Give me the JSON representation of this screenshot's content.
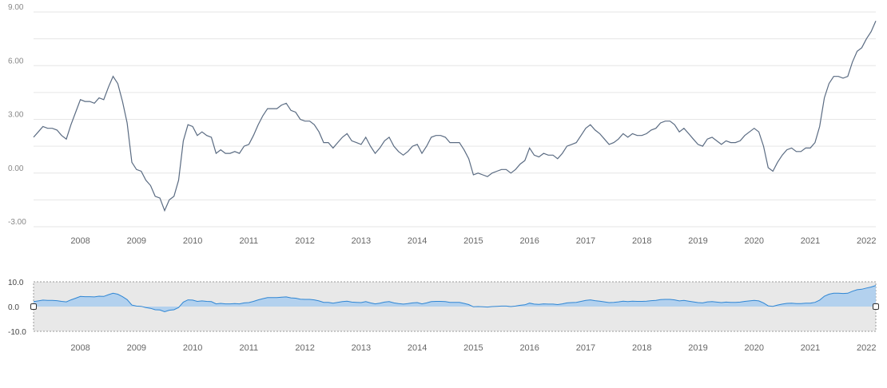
{
  "chart_data": {
    "type": "line",
    "title": "",
    "xlabel": "",
    "ylabel": "",
    "ylim": [
      -3,
      9
    ],
    "y_ticks": [
      "9.00",
      "6.00",
      "3.00",
      "0.00",
      "-3.00"
    ],
    "x_ticks": [
      "2008",
      "2009",
      "2010",
      "2011",
      "2012",
      "2013",
      "2014",
      "2015",
      "2016",
      "2017",
      "2018",
      "2019",
      "2020",
      "2021",
      "2022"
    ],
    "grid": true,
    "series": [
      {
        "color": "#5a6b82",
        "x": [
          "2007-03",
          "2007-04",
          "2007-05",
          "2007-06",
          "2007-07",
          "2007-08",
          "2007-09",
          "2007-10",
          "2007-11",
          "2007-12",
          "2008-01",
          "2008-02",
          "2008-03",
          "2008-04",
          "2008-05",
          "2008-06",
          "2008-07",
          "2008-08",
          "2008-09",
          "2008-10",
          "2008-11",
          "2008-12",
          "2009-01",
          "2009-02",
          "2009-03",
          "2009-04",
          "2009-05",
          "2009-06",
          "2009-07",
          "2009-08",
          "2009-09",
          "2009-10",
          "2009-11",
          "2009-12",
          "2010-01",
          "2010-02",
          "2010-03",
          "2010-04",
          "2010-05",
          "2010-06",
          "2010-07",
          "2010-08",
          "2010-09",
          "2010-10",
          "2010-11",
          "2010-12",
          "2011-01",
          "2011-02",
          "2011-03",
          "2011-04",
          "2011-05",
          "2011-06",
          "2011-07",
          "2011-08",
          "2011-09",
          "2011-10",
          "2011-11",
          "2011-12",
          "2012-01",
          "2012-02",
          "2012-03",
          "2012-04",
          "2012-05",
          "2012-06",
          "2012-07",
          "2012-08",
          "2012-09",
          "2012-10",
          "2012-11",
          "2012-12",
          "2013-01",
          "2013-02",
          "2013-03",
          "2013-04",
          "2013-05",
          "2013-06",
          "2013-07",
          "2013-08",
          "2013-09",
          "2013-10",
          "2013-11",
          "2013-12",
          "2014-01",
          "2014-02",
          "2014-03",
          "2014-04",
          "2014-05",
          "2014-06",
          "2014-07",
          "2014-08",
          "2014-09",
          "2014-10",
          "2014-11",
          "2014-12",
          "2015-01",
          "2015-02",
          "2015-03",
          "2015-04",
          "2015-05",
          "2015-06",
          "2015-07",
          "2015-08",
          "2015-09",
          "2015-10",
          "2015-11",
          "2015-12",
          "2016-01",
          "2016-02",
          "2016-03",
          "2016-04",
          "2016-05",
          "2016-06",
          "2016-07",
          "2016-08",
          "2016-09",
          "2016-10",
          "2016-11",
          "2016-12",
          "2017-01",
          "2017-02",
          "2017-03",
          "2017-04",
          "2017-05",
          "2017-06",
          "2017-07",
          "2017-08",
          "2017-09",
          "2017-10",
          "2017-11",
          "2017-12",
          "2018-01",
          "2018-02",
          "2018-03",
          "2018-04",
          "2018-05",
          "2018-06",
          "2018-07",
          "2018-08",
          "2018-09",
          "2018-10",
          "2018-11",
          "2018-12",
          "2019-01",
          "2019-02",
          "2019-03",
          "2019-04",
          "2019-05",
          "2019-06",
          "2019-07",
          "2019-08",
          "2019-09",
          "2019-10",
          "2019-11",
          "2019-12",
          "2020-01",
          "2020-02",
          "2020-03",
          "2020-04",
          "2020-05",
          "2020-06",
          "2020-07",
          "2020-08",
          "2020-09",
          "2020-10",
          "2020-11",
          "2020-12",
          "2021-01",
          "2021-02",
          "2021-03",
          "2021-04",
          "2021-05",
          "2021-06",
          "2021-07",
          "2021-08",
          "2021-09",
          "2021-10",
          "2021-11",
          "2021-12",
          "2022-01",
          "2022-02",
          "2022-03"
        ],
        "values": [
          2.0,
          2.3,
          2.6,
          2.5,
          2.5,
          2.4,
          2.1,
          1.9,
          2.7,
          3.4,
          4.1,
          4.0,
          4.0,
          3.9,
          4.2,
          4.1,
          4.8,
          5.4,
          5.0,
          4.0,
          2.8,
          0.6,
          0.2,
          0.1,
          -0.4,
          -0.7,
          -1.3,
          -1.4,
          -2.1,
          -1.5,
          -1.3,
          -0.4,
          1.8,
          2.7,
          2.6,
          2.1,
          2.3,
          2.1,
          2.0,
          1.1,
          1.3,
          1.1,
          1.1,
          1.2,
          1.1,
          1.5,
          1.6,
          2.1,
          2.7,
          3.2,
          3.6,
          3.6,
          3.6,
          3.8,
          3.9,
          3.5,
          3.4,
          3.0,
          2.9,
          2.9,
          2.7,
          2.3,
          1.7,
          1.7,
          1.4,
          1.7,
          2.0,
          2.2,
          1.8,
          1.7,
          1.6,
          2.0,
          1.5,
          1.1,
          1.4,
          1.8,
          2.0,
          1.5,
          1.2,
          1.0,
          1.2,
          1.5,
          1.6,
          1.1,
          1.5,
          2.0,
          2.1,
          2.1,
          2.0,
          1.7,
          1.7,
          1.7,
          1.3,
          0.8,
          -0.1,
          0.0,
          -0.1,
          -0.2,
          0.0,
          0.1,
          0.2,
          0.2,
          0.0,
          0.2,
          0.5,
          0.7,
          1.4,
          1.0,
          0.9,
          1.1,
          1.0,
          1.0,
          0.8,
          1.1,
          1.5,
          1.6,
          1.7,
          2.1,
          2.5,
          2.7,
          2.4,
          2.2,
          1.9,
          1.6,
          1.7,
          1.9,
          2.2,
          2.0,
          2.2,
          2.1,
          2.1,
          2.2,
          2.4,
          2.5,
          2.8,
          2.9,
          2.9,
          2.7,
          2.3,
          2.5,
          2.2,
          1.9,
          1.6,
          1.5,
          1.9,
          2.0,
          1.8,
          1.6,
          1.8,
          1.7,
          1.7,
          1.8,
          2.1,
          2.3,
          2.5,
          2.3,
          1.5,
          0.3,
          0.1,
          0.6,
          1.0,
          1.3,
          1.4,
          1.2,
          1.2,
          1.4,
          1.4,
          1.7,
          2.6,
          4.2,
          5.0,
          5.4,
          5.4,
          5.3,
          5.4,
          6.2,
          6.8,
          7.0,
          7.5,
          7.9,
          8.5
        ]
      }
    ],
    "navigator": {
      "y_ticks": [
        "10.0",
        "0.0",
        "-10.0"
      ],
      "ylim": [
        -10,
        10
      ],
      "x_ticks": [
        "2008",
        "2009",
        "2010",
        "2011",
        "2012",
        "2013",
        "2014",
        "2015",
        "2016",
        "2017",
        "2018",
        "2019",
        "2020",
        "2021",
        "2022"
      ],
      "color": "#2f86d4",
      "fill": "#a9cdee"
    }
  }
}
